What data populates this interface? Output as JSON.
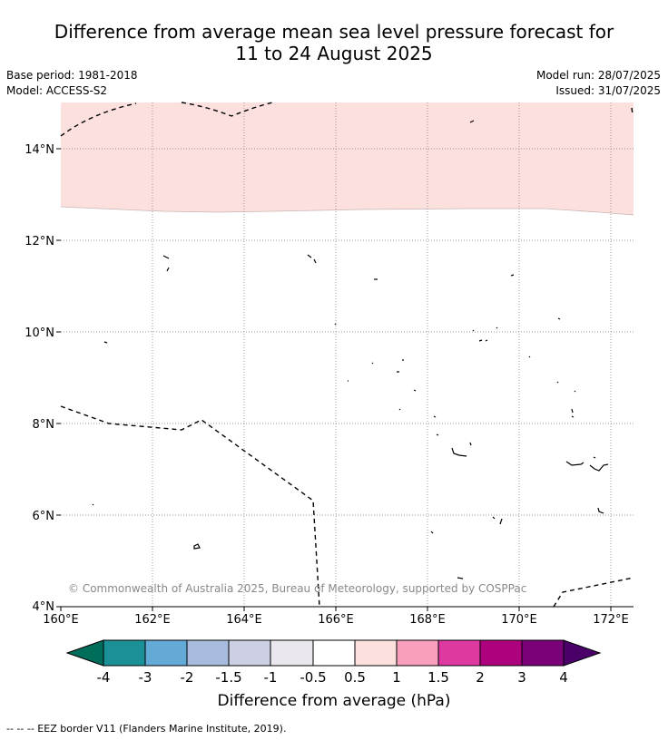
{
  "title_line1": "Difference from average mean sea level pressure forecast for",
  "title_line2": "11 to 24 August 2025",
  "base_period": "Base period: 1981-2018",
  "model": "Model: ACCESS-S2",
  "model_run": "Model run: 28/07/2025",
  "issued": "Issued: 31/07/2025",
  "copyright": "© Commonwealth of Australia 2025, Bureau of Meteorology, supported by COSPPac",
  "map": {
    "lon_ticks": [
      "160°E",
      "162°E",
      "164°E",
      "166°E",
      "168°E",
      "170°E",
      "172°E"
    ],
    "lat_ticks": [
      "14°N",
      "12°N",
      "10°N",
      "8°N",
      "6°N",
      "4°N"
    ],
    "positive_region_color": "#fce0de"
  },
  "colorbar": {
    "label": "Difference from average (hPa)",
    "tick_labels": [
      "-4",
      "-3",
      "-2",
      "-1.5",
      "-1",
      "-0.5",
      "0.5",
      "1",
      "1.5",
      "2",
      "3",
      "4"
    ],
    "low_extend_color": "#006d5b",
    "high_extend_color": "#4a0068",
    "colors": [
      "#1b9096",
      "#64aad6",
      "#a6bbdd",
      "#cdd0e5",
      "#eae8ee",
      "#ffffff",
      "#fce0de",
      "#f89fbc",
      "#dd39a0",
      "#ad017d",
      "#7a0077"
    ]
  },
  "legend_footer": "--  --  -- EEZ border V11 (Flanders Marine Institute, 2019)."
}
